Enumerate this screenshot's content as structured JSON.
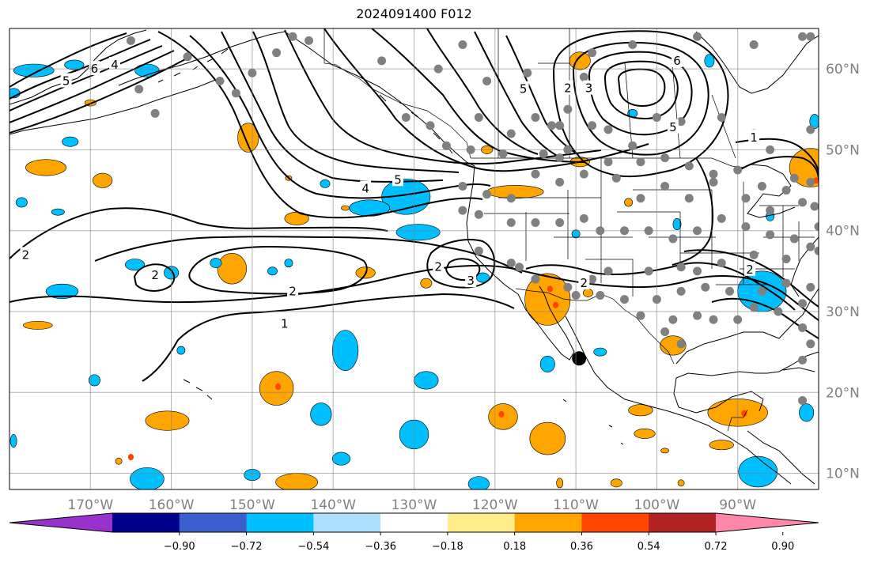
{
  "title": "2024091400 F012",
  "map": {
    "lon_range": [
      -180,
      -80
    ],
    "lat_range": [
      8,
      65
    ],
    "lon_ticks": [
      {
        "lon": -170,
        "label": "170°W"
      },
      {
        "lon": -160,
        "label": "160°W"
      },
      {
        "lon": -150,
        "label": "150°W"
      },
      {
        "lon": -140,
        "label": "140°W"
      },
      {
        "lon": -130,
        "label": "130°W"
      },
      {
        "lon": -120,
        "label": "120°W"
      },
      {
        "lon": -110,
        "label": "110°W"
      },
      {
        "lon": -100,
        "label": "100°W"
      },
      {
        "lon": -90,
        "label": "90°W"
      }
    ],
    "lat_ticks": [
      {
        "lat": 10,
        "label": "10°N"
      },
      {
        "lat": 20,
        "label": "20°N"
      },
      {
        "lat": 30,
        "label": "30°N"
      },
      {
        "lat": 40,
        "label": "40°N"
      },
      {
        "lat": 50,
        "label": "50°N"
      },
      {
        "lat": 60,
        "label": "60°N"
      }
    ],
    "marker": {
      "lon": -109.6,
      "lat": 24.2,
      "color": "#000000"
    },
    "contour_labels": [
      {
        "text": "2",
        "lon": -178,
        "lat": 37
      },
      {
        "text": "2",
        "lon": -162,
        "lat": 34.5
      },
      {
        "text": "2",
        "lon": -145,
        "lat": 32.5
      },
      {
        "text": "1",
        "lon": -146,
        "lat": 28.5
      },
      {
        "text": "2",
        "lon": -127,
        "lat": 35.5
      },
      {
        "text": "3",
        "lon": -123,
        "lat": 33.8
      },
      {
        "text": "2",
        "lon": -109,
        "lat": 33.5
      },
      {
        "text": "4",
        "lon": -136,
        "lat": 45.2
      },
      {
        "text": "5",
        "lon": -132,
        "lat": 46.3
      },
      {
        "text": "5",
        "lon": -116.5,
        "lat": 57.5
      },
      {
        "text": "2",
        "lon": -111,
        "lat": 57.6
      },
      {
        "text": "3",
        "lon": -108.4,
        "lat": 57.6
      },
      {
        "text": "5",
        "lon": -98,
        "lat": 52.8
      },
      {
        "text": "6",
        "lon": -97.5,
        "lat": 61
      },
      {
        "text": "1",
        "lon": -88,
        "lat": 51.5
      },
      {
        "text": "2",
        "lon": -88.5,
        "lat": 35.2
      },
      {
        "text": "5",
        "lon": -173,
        "lat": 58.5
      },
      {
        "text": "6",
        "lon": -169.5,
        "lat": 60
      },
      {
        "text": "4",
        "lon": -167,
        "lat": 60.5
      }
    ],
    "obs_points": [
      [
        -165,
        63.5
      ],
      [
        -158,
        61.5
      ],
      [
        -147,
        62
      ],
      [
        -145,
        64
      ],
      [
        -143,
        63.5
      ],
      [
        -134,
        61
      ],
      [
        -127,
        60
      ],
      [
        -121,
        58.5
      ],
      [
        -124,
        63
      ],
      [
        -116,
        59.5
      ],
      [
        -109,
        59
      ],
      [
        -108,
        62
      ],
      [
        -103,
        63
      ],
      [
        -95,
        64
      ],
      [
        -88,
        63
      ],
      [
        -82,
        64
      ],
      [
        -81,
        64
      ],
      [
        -164,
        57.5
      ],
      [
        -154,
        58.5
      ],
      [
        -152,
        57
      ],
      [
        -150,
        59.5
      ],
      [
        -131,
        54
      ],
      [
        -128,
        53
      ],
      [
        -122,
        54
      ],
      [
        -118,
        52
      ],
      [
        -115,
        54
      ],
      [
        -113,
        53
      ],
      [
        -112,
        53
      ],
      [
        -111,
        55
      ],
      [
        -108,
        53
      ],
      [
        -106,
        52.5
      ],
      [
        -103,
        50.5
      ],
      [
        -100,
        54
      ],
      [
        -97,
        53.5
      ],
      [
        -92,
        54
      ],
      [
        -88,
        52
      ],
      [
        -86,
        50
      ],
      [
        -81,
        52.5
      ],
      [
        -162,
        54.5
      ],
      [
        -126,
        50.5
      ],
      [
        -123,
        50
      ],
      [
        -119,
        49.5
      ],
      [
        -114,
        49.5
      ],
      [
        -112,
        49
      ],
      [
        -111,
        50
      ],
      [
        -106,
        48.5
      ],
      [
        -102,
        48.5
      ],
      [
        -99,
        49
      ],
      [
        -96,
        48
      ],
      [
        -93,
        47
      ],
      [
        -90,
        47.5
      ],
      [
        -87,
        45.5
      ],
      [
        -84,
        45
      ],
      [
        -83,
        46.5
      ],
      [
        -81,
        46
      ],
      [
        -124,
        45.5
      ],
      [
        -121,
        44.5
      ],
      [
        -118,
        44
      ],
      [
        -115,
        47
      ],
      [
        -112,
        46
      ],
      [
        -109,
        47
      ],
      [
        -105,
        46.5
      ],
      [
        -102,
        44
      ],
      [
        -99,
        45.5
      ],
      [
        -96,
        44
      ],
      [
        -93,
        46
      ],
      [
        -89,
        44
      ],
      [
        -86,
        42.5
      ],
      [
        -82,
        43.5
      ],
      [
        -80.5,
        43
      ],
      [
        -124,
        42.5
      ],
      [
        -122,
        42
      ],
      [
        -118,
        41
      ],
      [
        -115,
        41
      ],
      [
        -112,
        41
      ],
      [
        -109,
        41.5
      ],
      [
        -107,
        40
      ],
      [
        -104,
        40
      ],
      [
        -101,
        40
      ],
      [
        -98,
        39
      ],
      [
        -95,
        40
      ],
      [
        -92,
        41.5
      ],
      [
        -89,
        40.5
      ],
      [
        -86,
        39.5
      ],
      [
        -83,
        39
      ],
      [
        -80,
        40.5
      ],
      [
        -122,
        37.5
      ],
      [
        -118,
        36
      ],
      [
        -117,
        35.5
      ],
      [
        -115,
        34
      ],
      [
        -111,
        33
      ],
      [
        -108,
        34
      ],
      [
        -106,
        35
      ],
      [
        -101,
        35
      ],
      [
        -97,
        35.5
      ],
      [
        -95,
        35
      ],
      [
        -92,
        36
      ],
      [
        -88,
        37
      ],
      [
        -84,
        36.5
      ],
      [
        -81,
        38
      ],
      [
        -80,
        37.5
      ],
      [
        -110,
        32
      ],
      [
        -107,
        32
      ],
      [
        -104,
        31.5
      ],
      [
        -100,
        31.5
      ],
      [
        -97,
        32.5
      ],
      [
        -94,
        33
      ],
      [
        -91,
        32.5
      ],
      [
        -87,
        32.5
      ],
      [
        -84,
        33.5
      ],
      [
        -81,
        33
      ],
      [
        -82,
        31
      ],
      [
        -88,
        30.5
      ],
      [
        -90,
        29
      ],
      [
        -102,
        29.5
      ],
      [
        -98,
        29
      ],
      [
        -95,
        29.5
      ],
      [
        -93,
        29
      ],
      [
        -85,
        30
      ],
      [
        -82,
        28
      ],
      [
        -81,
        26
      ],
      [
        -82,
        24
      ],
      [
        -99,
        27.5
      ],
      [
        -97,
        26
      ],
      [
        -82,
        19
      ]
    ],
    "anomaly_patches": [
      {
        "lon": -177,
        "lat": 59.8,
        "rx": 2.5,
        "ry": 0.8,
        "level": "neg"
      },
      {
        "lon": -172,
        "lat": 60.5,
        "rx": 1.2,
        "ry": 0.6,
        "level": "neg"
      },
      {
        "lon": -163,
        "lat": 59.8,
        "rx": 1.5,
        "ry": 0.8,
        "level": "neg"
      },
      {
        "lon": -179.5,
        "lat": 57,
        "rx": 0.8,
        "ry": 0.6,
        "level": "neg"
      },
      {
        "lon": -170,
        "lat": 55.8,
        "rx": 0.7,
        "ry": 0.4,
        "level": "pos"
      },
      {
        "lon": -172.5,
        "lat": 51,
        "rx": 1,
        "ry": 0.6,
        "level": "neg"
      },
      {
        "lon": -175.5,
        "lat": 47.8,
        "rx": 2.5,
        "ry": 1,
        "level": "pos"
      },
      {
        "lon": -168.5,
        "lat": 46.2,
        "rx": 1.2,
        "ry": 0.9,
        "level": "pos"
      },
      {
        "lon": -178.5,
        "lat": 43.5,
        "rx": 0.7,
        "ry": 0.6,
        "level": "neg"
      },
      {
        "lon": -174,
        "lat": 42.3,
        "rx": 0.8,
        "ry": 0.4,
        "level": "neg"
      },
      {
        "lon": -150.5,
        "lat": 51.5,
        "rx": 1.3,
        "ry": 1.8,
        "level": "pos"
      },
      {
        "lon": -141,
        "lat": 45.8,
        "rx": 0.6,
        "ry": 0.5,
        "level": "neg"
      },
      {
        "lon": -144.5,
        "lat": 41.5,
        "rx": 1.5,
        "ry": 0.8,
        "level": "pos"
      },
      {
        "lon": -131,
        "lat": 44.2,
        "rx": 3,
        "ry": 2.2,
        "level": "neg"
      },
      {
        "lon": -135.5,
        "lat": 42.8,
        "rx": 2.5,
        "ry": 1,
        "level": "neg"
      },
      {
        "lon": -129.5,
        "lat": 39.8,
        "rx": 2.7,
        "ry": 1,
        "level": "neg"
      },
      {
        "lon": -117.5,
        "lat": 44.8,
        "rx": 3.5,
        "ry": 0.8,
        "level": "pos"
      },
      {
        "lon": -109.5,
        "lat": 48.5,
        "rx": 1.2,
        "ry": 0.6,
        "level": "pos"
      },
      {
        "lon": -121,
        "lat": 50,
        "rx": 0.7,
        "ry": 0.5,
        "level": "pos"
      },
      {
        "lon": -109.5,
        "lat": 61,
        "rx": 1.3,
        "ry": 1.1,
        "level": "pos"
      },
      {
        "lon": -103,
        "lat": 54.5,
        "rx": 0.6,
        "ry": 0.5,
        "level": "neg"
      },
      {
        "lon": -93.5,
        "lat": 61,
        "rx": 0.6,
        "ry": 0.8,
        "level": "neg"
      },
      {
        "lon": -80.5,
        "lat": 53.5,
        "rx": 0.6,
        "ry": 0.9,
        "level": "neg"
      },
      {
        "lon": -81,
        "lat": 47.8,
        "rx": 2.6,
        "ry": 2.4,
        "level": "pos"
      },
      {
        "lon": -86,
        "lat": 41.8,
        "rx": 0.5,
        "ry": 0.6,
        "level": "neg"
      },
      {
        "lon": -97.5,
        "lat": 40.8,
        "rx": 0.5,
        "ry": 0.7,
        "level": "neg"
      },
      {
        "lon": -103.5,
        "lat": 43.5,
        "rx": 0.5,
        "ry": 0.5,
        "level": "pos"
      },
      {
        "lon": -110,
        "lat": 39.6,
        "rx": 0.5,
        "ry": 0.5,
        "level": "neg"
      },
      {
        "lon": -138.5,
        "lat": 42.8,
        "rx": 0.5,
        "ry": 0.3,
        "level": "pos"
      },
      {
        "lon": -145.5,
        "lat": 46.5,
        "rx": 0.4,
        "ry": 0.3,
        "level": "pos"
      },
      {
        "lon": -152.5,
        "lat": 35.3,
        "rx": 1.8,
        "ry": 1.9,
        "level": "pos"
      },
      {
        "lon": -147.5,
        "lat": 35,
        "rx": 0.6,
        "ry": 0.5,
        "level": "neg"
      },
      {
        "lon": -160,
        "lat": 34.8,
        "rx": 0.9,
        "ry": 0.8,
        "level": "neg"
      },
      {
        "lon": -164.5,
        "lat": 35.8,
        "rx": 1.2,
        "ry": 0.7,
        "level": "neg"
      },
      {
        "lon": -173.5,
        "lat": 32.5,
        "rx": 2,
        "ry": 0.9,
        "level": "neg"
      },
      {
        "lon": -154.5,
        "lat": 36,
        "rx": 0.7,
        "ry": 0.6,
        "level": "neg"
      },
      {
        "lon": -145.5,
        "lat": 36,
        "rx": 0.5,
        "ry": 0.5,
        "level": "neg"
      },
      {
        "lon": -136,
        "lat": 34.8,
        "rx": 1.2,
        "ry": 0.7,
        "level": "pos"
      },
      {
        "lon": -128.5,
        "lat": 33.5,
        "rx": 0.7,
        "ry": 0.6,
        "level": "pos"
      },
      {
        "lon": -121.5,
        "lat": 34.2,
        "rx": 0.8,
        "ry": 0.6,
        "level": "neg"
      },
      {
        "lon": -113.5,
        "lat": 31.5,
        "rx": 2.8,
        "ry": 3.2,
        "level": "pos"
      },
      {
        "lon": -108.5,
        "lat": 32.3,
        "rx": 0.6,
        "ry": 0.5,
        "level": "pos"
      },
      {
        "lon": -87,
        "lat": 32.5,
        "rx": 3,
        "ry": 2.5,
        "level": "neg"
      },
      {
        "lon": -176.5,
        "lat": 28.3,
        "rx": 1.8,
        "ry": 0.5,
        "level": "pos"
      },
      {
        "lon": -158.8,
        "lat": 25.2,
        "rx": 0.5,
        "ry": 0.5,
        "level": "neg"
      },
      {
        "lon": -169.5,
        "lat": 21.5,
        "rx": 0.7,
        "ry": 0.7,
        "level": "neg"
      },
      {
        "lon": -138.5,
        "lat": 25.2,
        "rx": 1.6,
        "ry": 2.5,
        "level": "neg"
      },
      {
        "lon": -113.5,
        "lat": 23.5,
        "rx": 0.9,
        "ry": 1,
        "level": "neg"
      },
      {
        "lon": -107,
        "lat": 25,
        "rx": 0.8,
        "ry": 0.5,
        "level": "neg"
      },
      {
        "lon": -98,
        "lat": 25.8,
        "rx": 1.6,
        "ry": 1.2,
        "level": "pos"
      },
      {
        "lon": -147,
        "lat": 20.5,
        "rx": 2.1,
        "ry": 2.1,
        "level": "pos"
      },
      {
        "lon": -128.5,
        "lat": 21.5,
        "rx": 1.5,
        "ry": 1.1,
        "level": "neg"
      },
      {
        "lon": -141.5,
        "lat": 17.3,
        "rx": 1.3,
        "ry": 1.4,
        "level": "neg"
      },
      {
        "lon": -130,
        "lat": 14.8,
        "rx": 1.8,
        "ry": 1.8,
        "level": "neg"
      },
      {
        "lon": -119,
        "lat": 17,
        "rx": 1.8,
        "ry": 1.6,
        "level": "pos"
      },
      {
        "lon": -113.5,
        "lat": 14.3,
        "rx": 2.2,
        "ry": 2,
        "level": "pos"
      },
      {
        "lon": -160.5,
        "lat": 16.5,
        "rx": 2.7,
        "ry": 1.2,
        "level": "pos"
      },
      {
        "lon": -102,
        "lat": 17.8,
        "rx": 1.5,
        "ry": 0.7,
        "level": "pos"
      },
      {
        "lon": -101.5,
        "lat": 14.9,
        "rx": 1.3,
        "ry": 0.6,
        "level": "pos"
      },
      {
        "lon": -90,
        "lat": 17.5,
        "rx": 3.7,
        "ry": 1.7,
        "level": "pos"
      },
      {
        "lon": -99,
        "lat": 12.8,
        "rx": 0.5,
        "ry": 0.3,
        "level": "pos"
      },
      {
        "lon": -81.5,
        "lat": 17.5,
        "rx": 0.9,
        "ry": 1.1,
        "level": "neg"
      },
      {
        "lon": -179.5,
        "lat": 14,
        "rx": 0.4,
        "ry": 0.8,
        "level": "neg"
      },
      {
        "lon": -163,
        "lat": 9.3,
        "rx": 2.1,
        "ry": 1.4,
        "level": "neg"
      },
      {
        "lon": -150,
        "lat": 9.8,
        "rx": 1,
        "ry": 0.7,
        "level": "neg"
      },
      {
        "lon": -144.5,
        "lat": 8.9,
        "rx": 2.6,
        "ry": 1.1,
        "level": "pos"
      },
      {
        "lon": -139,
        "lat": 11.8,
        "rx": 1.1,
        "ry": 0.8,
        "level": "neg"
      },
      {
        "lon": -122,
        "lat": 8.7,
        "rx": 1.3,
        "ry": 0.9,
        "level": "neg"
      },
      {
        "lon": -112,
        "lat": 8.8,
        "rx": 0.4,
        "ry": 0.6,
        "level": "pos"
      },
      {
        "lon": -105,
        "lat": 8.8,
        "rx": 0.7,
        "ry": 0.5,
        "level": "pos"
      },
      {
        "lon": -92,
        "lat": 13.5,
        "rx": 1.5,
        "ry": 0.6,
        "level": "pos"
      },
      {
        "lon": -87.5,
        "lat": 10.2,
        "rx": 2.4,
        "ry": 1.9,
        "level": "neg"
      },
      {
        "lon": -97,
        "lat": 8.8,
        "rx": 0.4,
        "ry": 0.4,
        "level": "pos"
      },
      {
        "lon": -166.5,
        "lat": 11.5,
        "rx": 0.4,
        "ry": 0.4,
        "level": "pos"
      }
    ],
    "strong_pos_spots": [
      [
        -146.8,
        20.7
      ],
      [
        -113.2,
        32.8
      ],
      [
        -112.5,
        30.8
      ],
      [
        -119.2,
        17.3
      ],
      [
        -89.2,
        17.4
      ],
      [
        -80.3,
        46.2
      ],
      [
        -165,
        12
      ]
    ]
  },
  "colorbar": {
    "colors": [
      "#9932CC",
      "#00008B",
      "#3A5FCD",
      "#00BFFF",
      "#ADDFFF",
      "#FFFFFF",
      "#FFEC8B",
      "#FFA500",
      "#FF4500",
      "#B22222",
      "#FF88AA"
    ],
    "tick_labels": [
      "−0.90",
      "−0.72",
      "−0.54",
      "−0.36",
      "−0.18",
      "0.18",
      "0.36",
      "0.54",
      "0.72",
      "0.90"
    ],
    "anomaly_pos_color": "#FFA500",
    "anomaly_neg_color": "#00BFFF",
    "strong_pos_color": "#FF4500",
    "obs_color": "#808080"
  }
}
